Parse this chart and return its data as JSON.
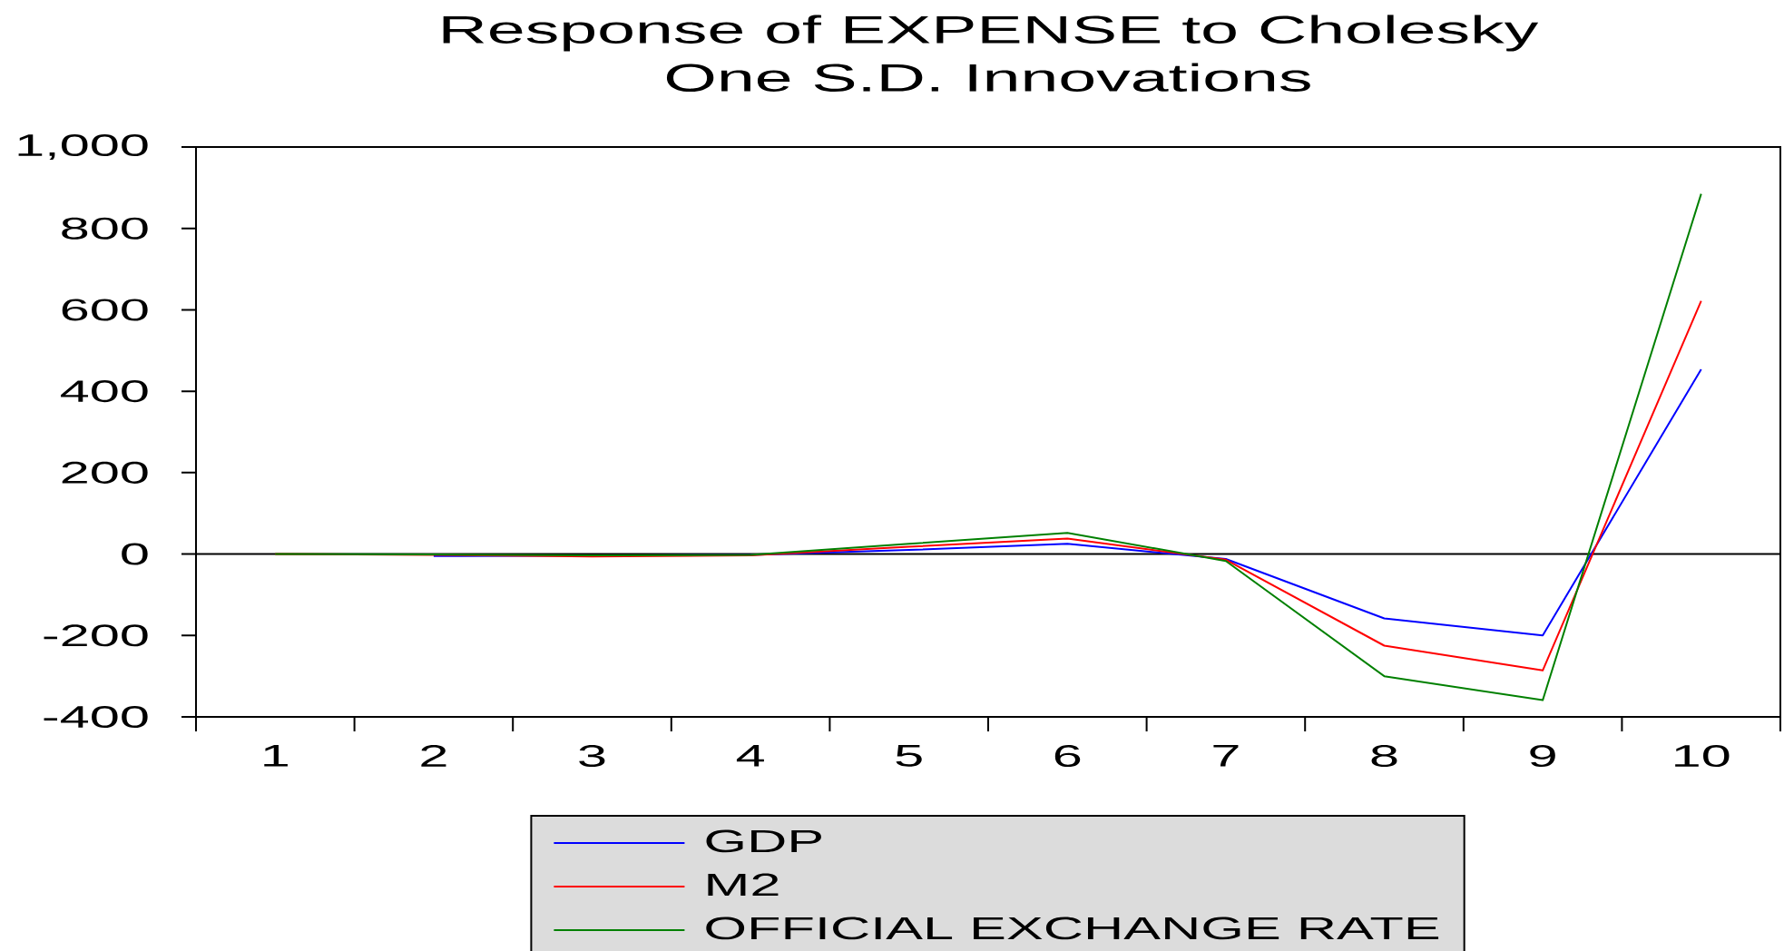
{
  "chart_data": {
    "type": "line",
    "title": "Response of EXPENSE to Cholesky",
    "subtitle": "One S.D. Innovations",
    "categories": [
      "1",
      "2",
      "3",
      "4",
      "5",
      "6",
      "7",
      "8",
      "9",
      "10"
    ],
    "series": [
      {
        "name": "GDP",
        "color": "#0000ff",
        "values": [
          null,
          -5,
          -4,
          -2,
          10,
          25,
          -12,
          -158,
          -200,
          454
        ]
      },
      {
        "name": "M2",
        "color": "#ff0000",
        "values": [
          0,
          -2,
          -6,
          -3,
          18,
          38,
          -14,
          -225,
          -286,
          622
        ]
      },
      {
        "name": "OFFICIAL EXCHANGE RATE",
        "color": "#008000",
        "values": [
          0,
          -1,
          -3,
          -2,
          25,
          52,
          -17,
          -300,
          -359,
          885
        ]
      }
    ],
    "ylim": [
      -400,
      1000
    ],
    "yticks": [
      -400,
      -200,
      0,
      200,
      400,
      600,
      800,
      {
        "value": 1000,
        "label": "1,000"
      }
    ],
    "ref_lines": [
      {
        "axis": "y",
        "value": 0,
        "color": "#000000"
      }
    ],
    "legend": "bottom"
  }
}
